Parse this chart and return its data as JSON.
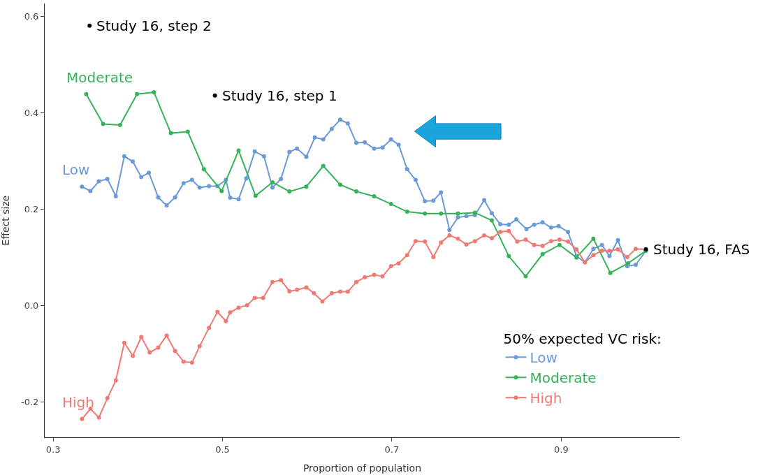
{
  "chart_data": {
    "type": "line",
    "xlabel": "Proportion of population",
    "ylabel": "Effect size",
    "legend_title": "50% expected VC risk:",
    "legend": "bottom right",
    "marker": "circle",
    "line_style": "solid",
    "xlim": [
      0.29,
      1.04
    ],
    "xticks": [
      0.3,
      0.5,
      0.7,
      0.9
    ],
    "ylim": [
      -0.273,
      0.627
    ],
    "yticks": [
      {
        "value": -0.2,
        "label": "-0.2"
      },
      {
        "value": 0.0,
        "label": "0.0"
      },
      {
        "value": 0.2,
        "label": "0.2"
      },
      {
        "value": 0.4,
        "label": "0.4"
      },
      {
        "value": 0.6,
        "label": "0.6"
      }
    ],
    "series": [
      {
        "name": "Low",
        "color": "#6a9ad8",
        "x": [
          0.334,
          0.344,
          0.354,
          0.364,
          0.374,
          0.384,
          0.394,
          0.404,
          0.413,
          0.424,
          0.434,
          0.444,
          0.454,
          0.464,
          0.473,
          0.484,
          0.494,
          0.504,
          0.509,
          0.519,
          0.528,
          0.538,
          0.549,
          0.559,
          0.569,
          0.579,
          0.588,
          0.599,
          0.609,
          0.619,
          0.629,
          0.639,
          0.648,
          0.658,
          0.668,
          0.679,
          0.689,
          0.699,
          0.708,
          0.718,
          0.728,
          0.739,
          0.749,
          0.758,
          0.768,
          0.778,
          0.788,
          0.798,
          0.809,
          0.818,
          0.828,
          0.838,
          0.847,
          0.859,
          0.868,
          0.878,
          0.888,
          0.897,
          0.908,
          0.918,
          0.928,
          0.938,
          0.948,
          0.957,
          0.967,
          0.978,
          0.988,
          1.0
        ],
        "values": [
          0.247,
          0.238,
          0.258,
          0.263,
          0.227,
          0.31,
          0.299,
          0.267,
          0.276,
          0.225,
          0.208,
          0.225,
          0.254,
          0.261,
          0.245,
          0.248,
          0.248,
          0.261,
          0.224,
          0.221,
          0.264,
          0.32,
          0.31,
          0.245,
          0.263,
          0.319,
          0.326,
          0.309,
          0.349,
          0.345,
          0.367,
          0.386,
          0.378,
          0.338,
          0.339,
          0.326,
          0.328,
          0.345,
          0.334,
          0.283,
          0.261,
          0.217,
          0.218,
          0.235,
          0.157,
          0.183,
          0.186,
          0.188,
          0.219,
          0.192,
          0.169,
          0.168,
          0.179,
          0.159,
          0.168,
          0.173,
          0.162,
          0.165,
          0.153,
          0.103,
          0.09,
          0.118,
          0.126,
          0.103,
          0.136,
          0.082,
          0.085,
          0.114
        ]
      },
      {
        "name": "Moderate",
        "color": "#35b35a",
        "x": [
          0.339,
          0.359,
          0.379,
          0.399,
          0.419,
          0.439,
          0.459,
          0.478,
          0.499,
          0.519,
          0.539,
          0.559,
          0.579,
          0.599,
          0.619,
          0.639,
          0.658,
          0.679,
          0.699,
          0.718,
          0.739,
          0.758,
          0.778,
          0.798,
          0.818,
          0.838,
          0.858,
          0.878,
          0.898,
          0.918,
          0.938,
          0.958,
          0.979,
          1.0
        ],
        "values": [
          0.439,
          0.377,
          0.375,
          0.439,
          0.443,
          0.358,
          0.361,
          0.283,
          0.238,
          0.322,
          0.228,
          0.256,
          0.237,
          0.247,
          0.29,
          0.251,
          0.237,
          0.227,
          0.211,
          0.195,
          0.191,
          0.191,
          0.191,
          0.193,
          0.177,
          0.103,
          0.061,
          0.107,
          0.126,
          0.1,
          0.139,
          0.068,
          0.088,
          0.114
        ]
      },
      {
        "name": "High",
        "color": "#f07a72",
        "x": [
          0.334,
          0.344,
          0.354,
          0.364,
          0.374,
          0.384,
          0.394,
          0.404,
          0.414,
          0.424,
          0.434,
          0.444,
          0.454,
          0.464,
          0.473,
          0.484,
          0.494,
          0.504,
          0.509,
          0.519,
          0.529,
          0.538,
          0.548,
          0.559,
          0.569,
          0.579,
          0.588,
          0.599,
          0.608,
          0.618,
          0.629,
          0.639,
          0.648,
          0.658,
          0.668,
          0.679,
          0.689,
          0.699,
          0.708,
          0.718,
          0.728,
          0.739,
          0.749,
          0.758,
          0.768,
          0.778,
          0.788,
          0.798,
          0.809,
          0.818,
          0.828,
          0.838,
          0.848,
          0.858,
          0.868,
          0.878,
          0.888,
          0.898,
          0.908,
          0.918,
          0.928,
          0.938,
          0.948,
          0.957,
          0.967,
          0.978,
          0.988,
          1.0
        ],
        "values": [
          -0.235,
          -0.214,
          -0.232,
          -0.192,
          -0.155,
          -0.077,
          -0.104,
          -0.065,
          -0.097,
          -0.087,
          -0.062,
          -0.094,
          -0.116,
          -0.118,
          -0.084,
          -0.046,
          -0.013,
          -0.032,
          -0.014,
          -0.004,
          0.001,
          0.016,
          0.016,
          0.049,
          0.053,
          0.03,
          0.033,
          0.038,
          0.026,
          0.009,
          0.026,
          0.029,
          0.029,
          0.049,
          0.059,
          0.064,
          0.061,
          0.082,
          0.088,
          0.105,
          0.134,
          0.133,
          0.101,
          0.131,
          0.146,
          0.139,
          0.127,
          0.134,
          0.146,
          0.14,
          0.153,
          0.155,
          0.133,
          0.137,
          0.126,
          0.124,
          0.134,
          0.137,
          0.133,
          0.117,
          0.09,
          0.105,
          0.114,
          0.114,
          0.117,
          0.101,
          0.118,
          0.117
        ]
      },
      {
        "type": "scatter",
        "color": "#000000",
        "x": [
          0.343,
          0.491,
          1.0
        ],
        "values": [
          0.581,
          0.436,
          0.117
        ]
      }
    ],
    "annotations": [
      {
        "text": "Study 16, step 2",
        "x": 0.343,
        "y": 0.581
      },
      {
        "text": "Study 16, step 1",
        "x": 0.491,
        "y": 0.436
      },
      {
        "text": "Study 16, FAS",
        "x": 1.0,
        "y": 0.117
      },
      "Low",
      "Moderate",
      "High"
    ]
  }
}
